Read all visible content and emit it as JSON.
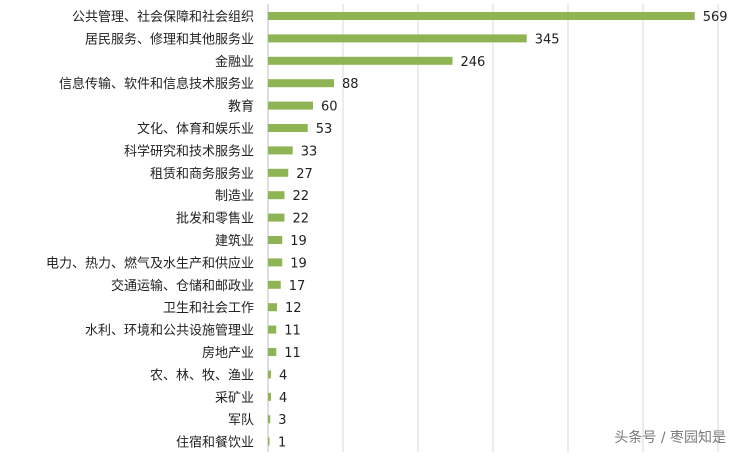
{
  "colors": {
    "bar": "#8fb453",
    "grid": "#d9d9d9",
    "axis": "#bfbfbf",
    "text": "#222222",
    "watermark": "#7a7a7a"
  },
  "watermark": "头条号 / 枣园知是",
  "chart_data": {
    "type": "bar",
    "orientation": "horizontal",
    "categories": [
      "公共管理、社会保障和社会组织",
      "居民服务、修理和其他服务业",
      "金融业",
      "信息传输、软件和信息技术服务业",
      "教育",
      "文化、体育和娱乐业",
      "科学研究和技术服务业",
      "租赁和商务服务业",
      "制造业",
      "批发和零售业",
      "建筑业",
      "电力、热力、燃气及水生产和供应业",
      "交通运输、仓储和邮政业",
      "卫生和社会工作",
      "水利、环境和公共设施管理业",
      "房地产业",
      "农、林、牧、渔业",
      "采矿业",
      "军队",
      "住宿和餐饮业"
    ],
    "values": [
      569,
      345,
      246,
      88,
      60,
      53,
      33,
      27,
      22,
      22,
      19,
      19,
      17,
      12,
      11,
      11,
      4,
      4,
      3,
      1
    ],
    "xlim": [
      0,
      600
    ],
    "grid": true,
    "legend": "none",
    "title": "",
    "xlabel": "",
    "ylabel": ""
  }
}
